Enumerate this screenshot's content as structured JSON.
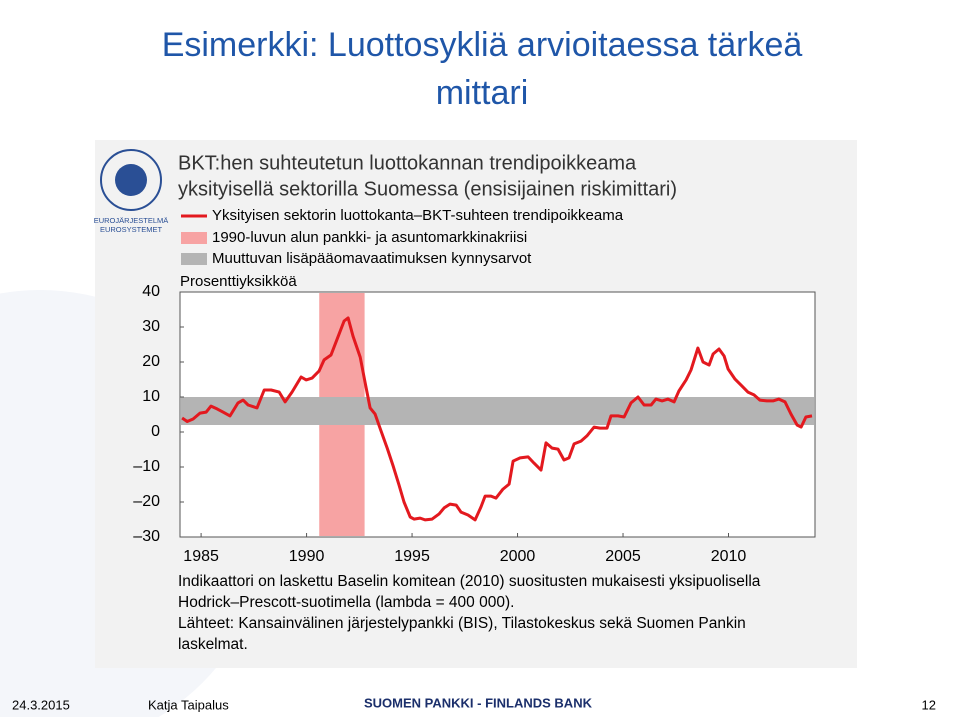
{
  "slide": {
    "title": [
      "Esimerkki: Luottosykliä arvioitaessa tärkeä",
      "mittari"
    ],
    "logo": [
      "EUROJÄRJESTELMÄ",
      "EUROSYSTEMET"
    ],
    "footer": {
      "date": "24.3.2015",
      "author": "Katja Taipalus",
      "bank": "SUOMEN PANKKI - FINLANDS BANK",
      "page": "12"
    }
  },
  "chart_data": {
    "type": "line",
    "title": [
      "BKT:hen suhteutetun luottokannan trendipoikkeama",
      "yksityisellä sektorilla Suomessa (ensisijainen riskimittari)"
    ],
    "y_label": "Prosenttiyksikköä",
    "x": [
      1984.1,
      1984.34,
      1984.62,
      1984.95,
      1985.24,
      1985.47,
      1985.76,
      1986.04,
      1986.37,
      1986.75,
      1986.99,
      1987.23,
      1987.65,
      1987.99,
      1988.32,
      1988.7,
      1988.98,
      1989.31,
      1989.74,
      1989.98,
      1990.26,
      1990.59,
      1990.83,
      1991.16,
      1991.45,
      1991.78,
      1991.97,
      1992.2,
      1992.54,
      1992.77,
      1993.01,
      1993.25,
      1993.53,
      1993.82,
      1994.1,
      1994.38,
      1994.62,
      1994.91,
      1995.09,
      1995.38,
      1995.62,
      1995.95,
      1996.28,
      1996.52,
      1996.8,
      1997.09,
      1997.32,
      1997.65,
      1997.99,
      1998.27,
      1998.46,
      1998.74,
      1998.98,
      1999.31,
      1999.6,
      1999.79,
      2000.12,
      2000.5,
      2000.78,
      2001.11,
      2001.35,
      2001.64,
      2001.92,
      2002.2,
      2002.44,
      2002.68,
      2003.01,
      2003.29,
      2003.63,
      2003.91,
      2004.24,
      2004.43,
      2004.76,
      2005.05,
      2005.38,
      2005.71,
      2006.0,
      2006.33,
      2006.56,
      2006.85,
      2007.13,
      2007.42,
      2007.65,
      2007.99,
      2008.22,
      2008.55,
      2008.79,
      2009.08,
      2009.27,
      2009.55,
      2009.79,
      2009.98,
      2010.31,
      2010.59,
      2010.92,
      2011.21,
      2011.49,
      2011.82,
      2012.11,
      2012.39,
      2012.68,
      2012.96,
      2013.25,
      2013.44,
      2013.67,
      2013.96
    ],
    "series": [
      {
        "name": "Yksityisen sektorin luottokanta–BKT-suhteen trendipoikkeama",
        "color": "#e3191f",
        "values": [
          4,
          3,
          3.7,
          5.4,
          5.7,
          7.4,
          6.6,
          5.7,
          4.6,
          8.3,
          9.1,
          7.7,
          6.9,
          12,
          12,
          11.4,
          8.6,
          11.4,
          15.7,
          14.9,
          15.4,
          17.4,
          20.6,
          22,
          26.6,
          31.7,
          32.6,
          27.4,
          21.4,
          14.3,
          6.9,
          5.1,
          0.3,
          -4.6,
          -9.7,
          -15.1,
          -20,
          -24.3,
          -24.9,
          -24.6,
          -25.1,
          -24.9,
          -23.4,
          -21.7,
          -20.6,
          -20.9,
          -22.9,
          -23.7,
          -25.1,
          -21.4,
          -18.3,
          -18.3,
          -18.9,
          -16.3,
          -14.9,
          -8.3,
          -7.4,
          -7.1,
          -8.9,
          -10.9,
          -3.1,
          -4.6,
          -4.9,
          -8,
          -7.4,
          -3.4,
          -2.6,
          -1.1,
          1.4,
          1.1,
          1.1,
          4.6,
          4.6,
          4.3,
          8.3,
          10,
          7.7,
          7.7,
          9.4,
          8.9,
          9.4,
          8.6,
          11.7,
          14.9,
          17.7,
          24,
          20,
          19.1,
          22.3,
          23.7,
          21.7,
          18,
          15.1,
          13.4,
          11.4,
          10.6,
          9.1,
          8.9,
          8.9,
          9.4,
          8.6,
          5.1,
          2,
          1.4,
          4.3,
          4.6
        ]
      }
    ],
    "crisis_band": {
      "name": "1990-luvun alun pankki- ja asuntomarkkinakriisi",
      "color": "#f7a3a3",
      "range": [
        1990.6,
        1992.75
      ]
    },
    "threshold_band": {
      "name": "Muuttuvan lisäpääomavaatimuksen kynnysarvot",
      "color": "#b4b4b4",
      "range": [
        2,
        10
      ]
    },
    "xlim": [
      1984,
      2014.1
    ],
    "xticks": [
      1985,
      1990,
      1995,
      2000,
      2005,
      2010
    ],
    "ylim": [
      -30,
      40
    ],
    "yticks": [
      {
        "value": -30,
        "label": "–30"
      },
      {
        "value": -20,
        "label": "–20"
      },
      {
        "value": -10,
        "label": "–10"
      },
      0,
      10,
      20,
      30,
      40
    ],
    "notes": [
      "Indikaattori on laskettu Baselin komitean (2010) suositusten mukaisesti yksipuolisella",
      "Hodrick–Prescott-suotimella (lambda = 400 000).",
      "Lähteet: Kansainvälinen järjestelypankki (BIS), Tilastokeskus sekä Suomen Pankin",
      "laskelmat."
    ]
  }
}
